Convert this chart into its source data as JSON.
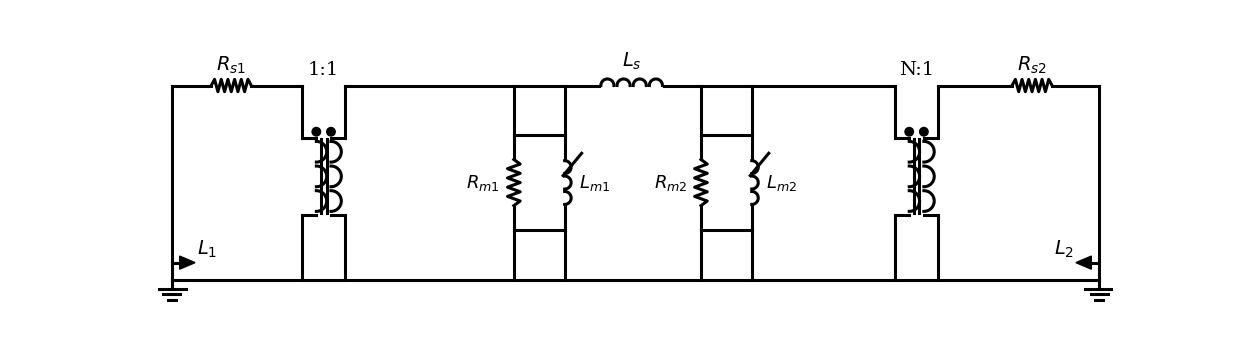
{
  "background_color": "#ffffff",
  "line_color": "#000000",
  "line_width": 2.2,
  "label_Rs1": "$R_{s1}$",
  "label_Rs2": "$R_{s2}$",
  "label_Ls": "$L_s$",
  "label_Rm1": "$R_{m1}$",
  "label_Lm1": "$L_{m1}$",
  "label_Rm2": "$R_{m2}$",
  "label_Lm2": "$L_{m2}$",
  "label_L1": "$L_1$",
  "label_L2": "$L_2$",
  "label_T1": "1:1",
  "label_T2": "N:1",
  "font_size": 14
}
